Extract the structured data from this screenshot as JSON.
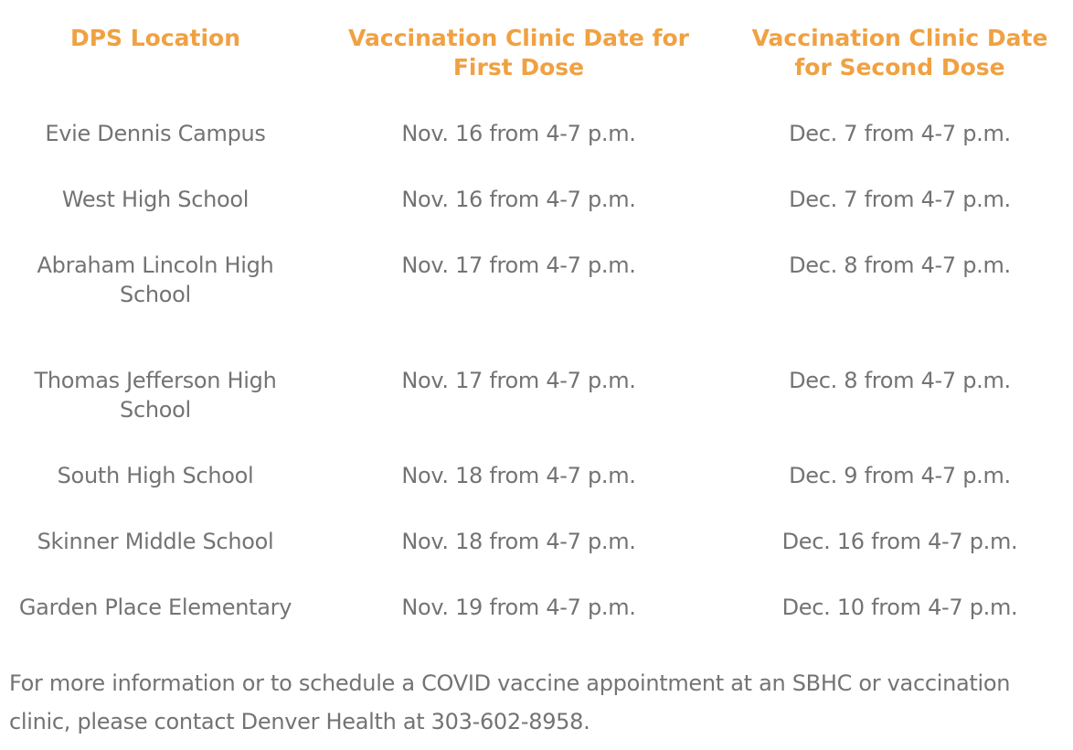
{
  "table": {
    "headers": [
      "DPS Location",
      "Vaccination Clinic Date for First Dose",
      "Vaccination Clinic Date for Second Dose"
    ],
    "rows": [
      [
        "Evie Dennis Campus",
        "Nov. 16 from 4-7 p.m.",
        "Dec. 7 from 4-7 p.m."
      ],
      [
        "West High School",
        "Nov. 16 from 4-7 p.m.",
        "Dec. 7 from 4-7 p.m."
      ],
      [
        "Abraham Lincoln High School",
        "Nov. 17 from 4-7 p.m.",
        "Dec. 8 from 4-7 p.m."
      ],
      [
        "Thomas Jefferson High School",
        "Nov. 17 from 4-7 p.m.",
        "Dec. 8 from 4-7 p.m."
      ],
      [
        "South High School",
        "Nov. 18 from 4-7 p.m.",
        "Dec. 9 from 4-7 p.m."
      ],
      [
        "Skinner Middle School",
        "Nov. 18 from 4-7 p.m.",
        "Dec. 16 from 4-7 p.m."
      ],
      [
        "Garden Place Elementary",
        "Nov. 19 from 4-7 p.m.",
        "Dec. 10 from 4-7 p.m."
      ]
    ]
  },
  "footer": "For more information or to schedule a COVID vaccine appointment at an SBHC or vaccination clinic, please contact Denver Health at 303-602-8958.",
  "colors": {
    "heading": "#f0a142",
    "text": "#737373"
  }
}
